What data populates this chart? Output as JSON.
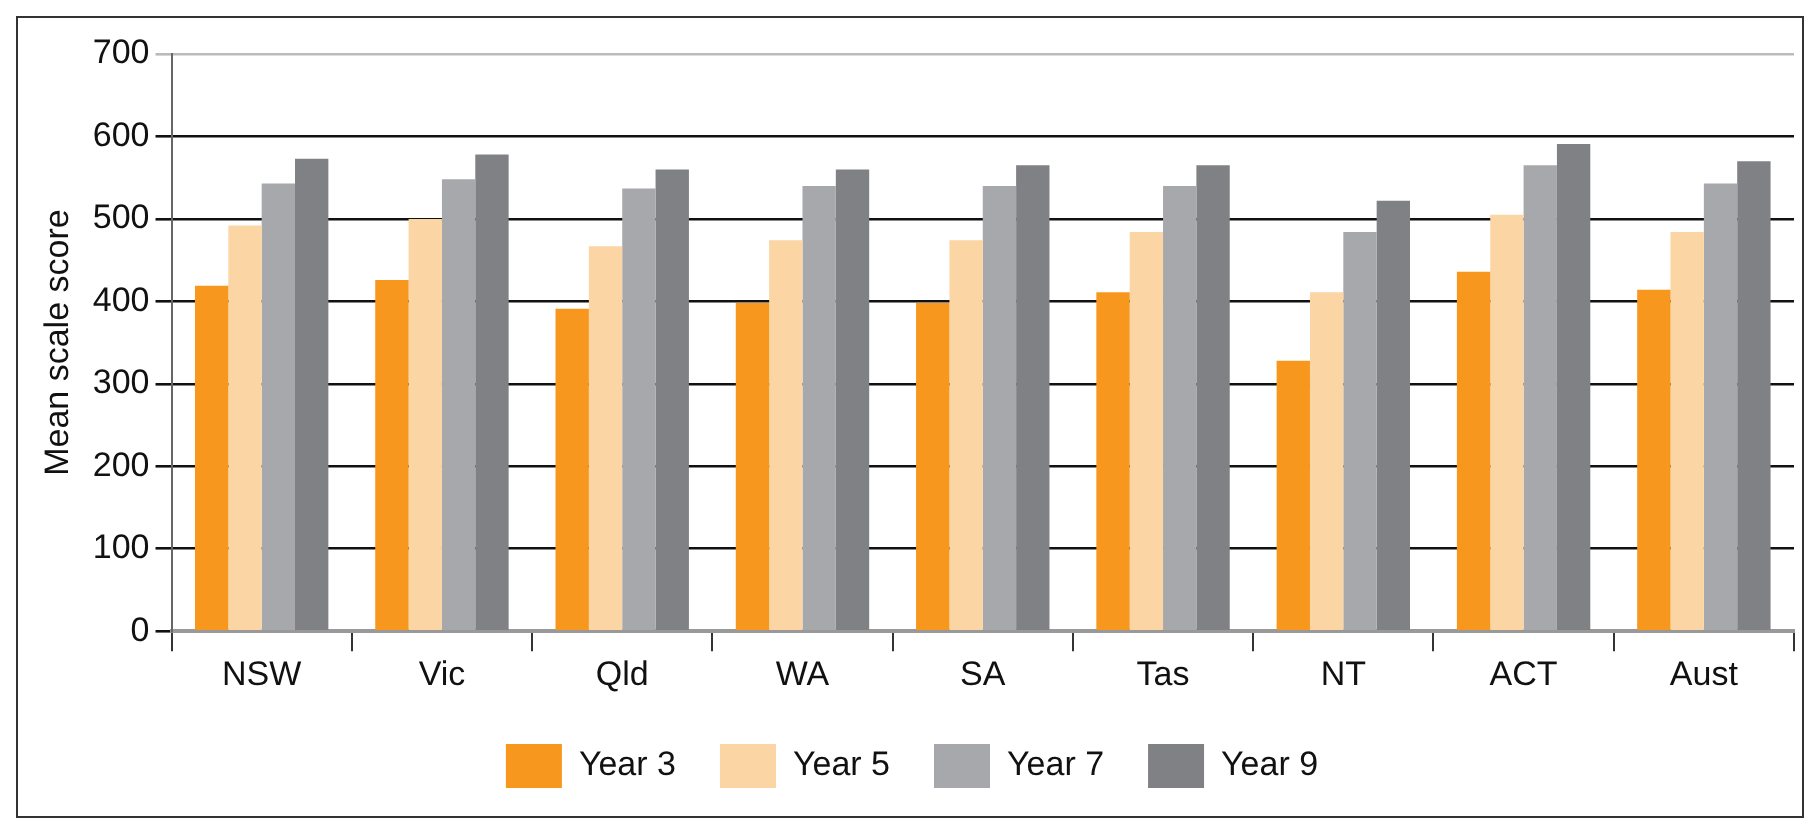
{
  "chart_data": {
    "type": "bar",
    "ylabel": "Mean scale score",
    "categories": [
      "NSW",
      "Vic",
      "Qld",
      "WA",
      "SA",
      "Tas",
      "NT",
      "ACT",
      "Aust"
    ],
    "series": [
      {
        "name": "Year 3",
        "color": "#f7971e",
        "values": [
          419,
          426,
          391,
          398,
          398,
          411,
          328,
          436,
          414
        ]
      },
      {
        "name": "Year 5",
        "color": "#fbd5a3",
        "values": [
          492,
          500,
          467,
          474,
          474,
          484,
          411,
          505,
          484
        ]
      },
      {
        "name": "Year 7",
        "color": "#a7a8ac",
        "values": [
          543,
          548,
          537,
          540,
          540,
          540,
          484,
          565,
          543
        ]
      },
      {
        "name": "Year 9",
        "color": "#808184",
        "values": [
          573,
          578,
          560,
          560,
          565,
          565,
          522,
          591,
          570
        ]
      }
    ],
    "ylim": [
      0,
      700
    ],
    "yticks": [
      0,
      100,
      200,
      300,
      400,
      500,
      600,
      700
    ],
    "grid": "y",
    "legend": "bottom"
  }
}
